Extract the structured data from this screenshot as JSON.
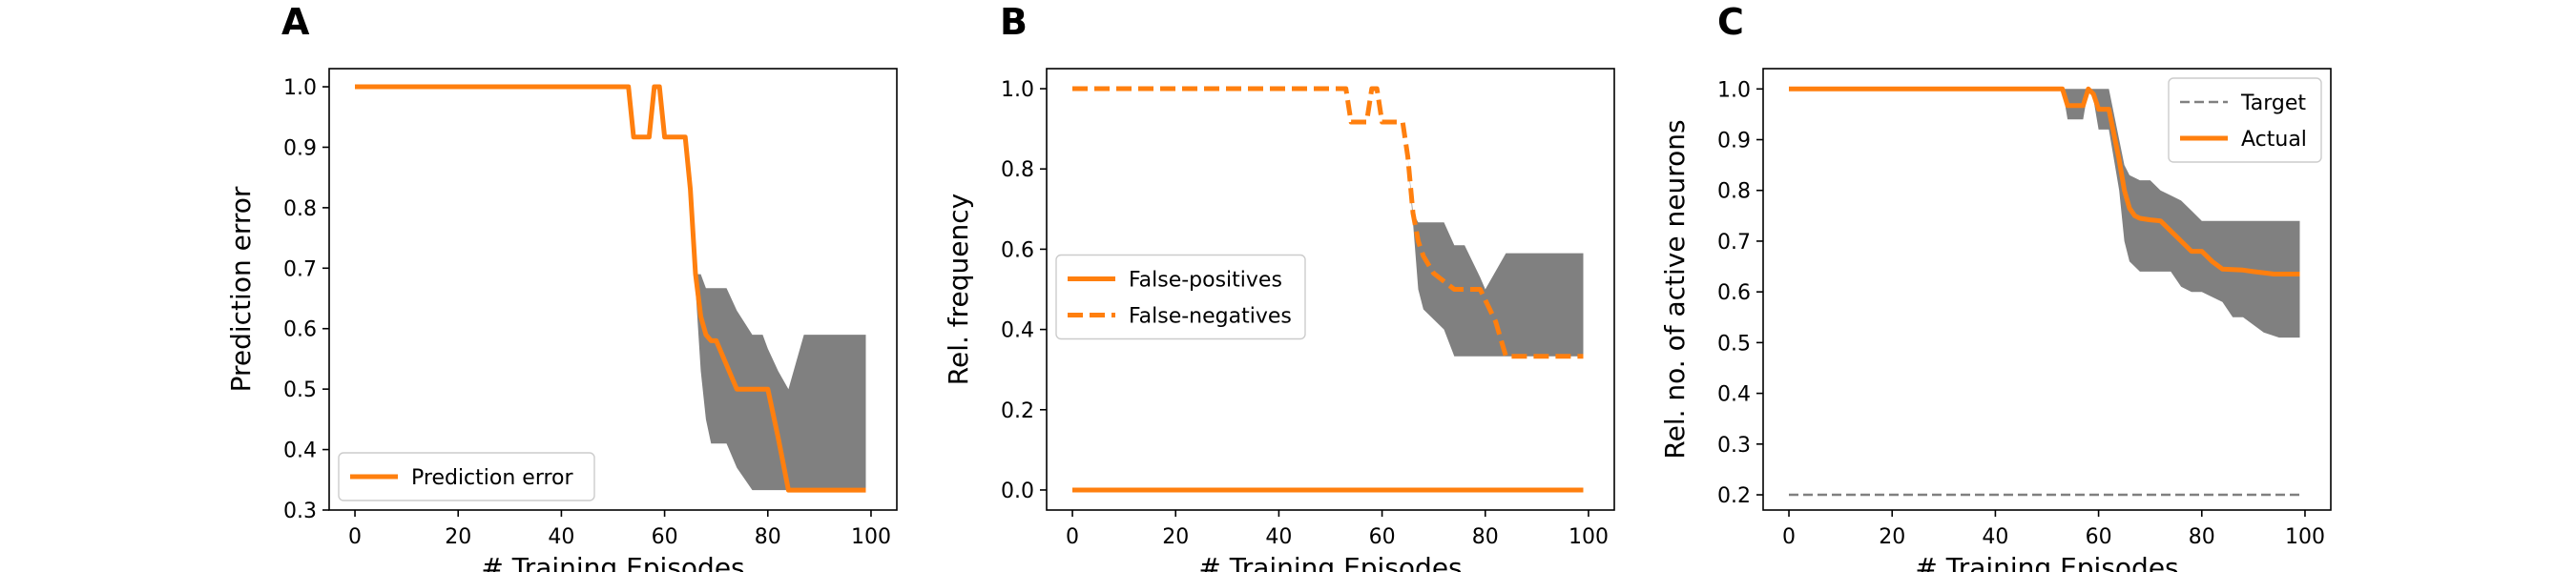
{
  "figure": {
    "panels": [
      {
        "letter": "A"
      },
      {
        "letter": "B"
      },
      {
        "letter": "C"
      }
    ]
  },
  "chart_data": [
    {
      "type": "line",
      "panel": "A",
      "xlabel": "# Training Episodes",
      "ylabel": "Prediction error",
      "xlim": [
        -5,
        105
      ],
      "ylim": [
        0.3,
        1.03
      ],
      "xticks": [
        0,
        20,
        40,
        60,
        80,
        100
      ],
      "yticks": [
        0.3,
        0.4,
        0.5,
        0.6,
        0.7,
        0.8,
        0.9,
        1.0
      ],
      "tick_format": 1,
      "legend": {
        "position": "lower left"
      },
      "series": [
        {
          "name": "Prediction error",
          "style": "solid",
          "color": "#ff7f0e",
          "x": [
            0,
            53,
            54,
            57,
            58,
            59,
            60,
            64,
            65,
            66,
            67,
            68,
            69,
            70,
            72,
            74,
            79,
            80,
            82,
            84,
            99
          ],
          "y": [
            1.0,
            1.0,
            0.917,
            0.917,
            1.0,
            1.0,
            0.917,
            0.917,
            0.83,
            0.69,
            0.62,
            0.59,
            0.58,
            0.58,
            0.54,
            0.5,
            0.5,
            0.5,
            0.42,
            0.333,
            0.333
          ]
        }
      ],
      "band": {
        "color": "#808080",
        "x": [
          0,
          53,
          54,
          57,
          58,
          59,
          60,
          64,
          65,
          66,
          67,
          68,
          69,
          70,
          72,
          74,
          77,
          79,
          80,
          82,
          84,
          87,
          88,
          89,
          99
        ],
        "upper": [
          1.0,
          1.0,
          0.917,
          0.917,
          1.0,
          1.0,
          0.917,
          0.917,
          0.83,
          0.69,
          0.69,
          0.667,
          0.667,
          0.667,
          0.667,
          0.63,
          0.59,
          0.59,
          0.567,
          0.53,
          0.5,
          0.59,
          0.59,
          0.59,
          0.59
        ],
        "lower": [
          1.0,
          1.0,
          0.917,
          0.917,
          1.0,
          1.0,
          0.917,
          0.917,
          0.83,
          0.667,
          0.53,
          0.45,
          0.41,
          0.41,
          0.41,
          0.37,
          0.333,
          0.333,
          0.333,
          0.333,
          0.333,
          0.333,
          0.333,
          0.333,
          0.333
        ]
      }
    },
    {
      "type": "line",
      "panel": "B",
      "xlabel": "# Training Episodes",
      "ylabel": "Rel. frequency",
      "xlim": [
        -5,
        105
      ],
      "ylim": [
        -0.05,
        1.05
      ],
      "xticks": [
        0,
        20,
        40,
        60,
        80,
        100
      ],
      "yticks": [
        0.0,
        0.2,
        0.4,
        0.6,
        0.8,
        1.0
      ],
      "tick_format": 1,
      "legend": {
        "position": "center left"
      },
      "series": [
        {
          "name": "False-positives",
          "style": "solid",
          "color": "#ff7f0e",
          "x": [
            0,
            99
          ],
          "y": [
            0.0,
            0.0
          ]
        },
        {
          "name": "False-negatives",
          "style": "dashed",
          "color": "#ff7f0e",
          "x": [
            0,
            53,
            54,
            57,
            58,
            59,
            60,
            64,
            65,
            66,
            67,
            68,
            70,
            74,
            79,
            82,
            84,
            99
          ],
          "y": [
            1.0,
            1.0,
            0.917,
            0.917,
            1.0,
            1.0,
            0.917,
            0.917,
            0.83,
            0.69,
            0.62,
            0.583,
            0.54,
            0.5,
            0.5,
            0.42,
            0.333,
            0.333
          ]
        }
      ],
      "band": {
        "color": "#808080",
        "x": [
          0,
          64,
          65,
          66,
          67,
          68,
          72,
          74,
          76,
          79,
          80,
          84,
          88,
          99
        ],
        "upper": [
          0,
          0,
          0.83,
          0.69,
          0.667,
          0.667,
          0.667,
          0.61,
          0.61,
          0.53,
          0.5,
          0.59,
          0.59,
          0.59
        ],
        "lower": [
          0,
          0,
          0.83,
          0.667,
          0.5,
          0.45,
          0.4,
          0.333,
          0.333,
          0.333,
          0.333,
          0.333,
          0.333,
          0.333
        ]
      }
    },
    {
      "type": "line",
      "panel": "C",
      "xlabel": "# Training Episodes",
      "ylabel": "Rel. no. of active neurons",
      "xlim": [
        -5,
        105
      ],
      "ylim": [
        0.17,
        1.04
      ],
      "xticks": [
        0,
        20,
        40,
        60,
        80,
        100
      ],
      "yticks": [
        0.2,
        0.3,
        0.4,
        0.5,
        0.6,
        0.7,
        0.8,
        0.9,
        1.0
      ],
      "tick_format": 1,
      "legend": {
        "position": "upper right"
      },
      "series": [
        {
          "name": "Target",
          "style": "dashed-thin",
          "color": "#808080",
          "x": [
            0,
            99
          ],
          "y": [
            0.2,
            0.2
          ]
        },
        {
          "name": "Actual",
          "style": "solid",
          "color": "#ff7f0e",
          "x": [
            0,
            53,
            54,
            56,
            57,
            58,
            59,
            60,
            62,
            64,
            65,
            66,
            67,
            68,
            70,
            72,
            74,
            76,
            78,
            80,
            82,
            84,
            88,
            90,
            94,
            99
          ],
          "y": [
            1.0,
            1.0,
            0.967,
            0.967,
            0.967,
            1.0,
            0.99,
            0.96,
            0.96,
            0.86,
            0.8,
            0.765,
            0.75,
            0.745,
            0.742,
            0.74,
            0.72,
            0.7,
            0.68,
            0.68,
            0.66,
            0.645,
            0.643,
            0.64,
            0.635,
            0.635
          ]
        }
      ],
      "band": {
        "color": "#808080",
        "x": [
          0,
          53,
          54,
          56,
          57,
          58,
          59,
          60,
          62,
          64,
          65,
          66,
          68,
          70,
          72,
          74,
          76,
          78,
          80,
          84,
          86,
          88,
          92,
          95,
          99
        ],
        "upper": [
          1.0,
          1.0,
          1.0,
          1.0,
          1.0,
          1.0,
          1.0,
          1.0,
          1.0,
          0.9,
          0.85,
          0.83,
          0.82,
          0.82,
          0.8,
          0.79,
          0.78,
          0.76,
          0.74,
          0.74,
          0.74,
          0.74,
          0.74,
          0.74,
          0.74
        ],
        "lower": [
          1.0,
          1.0,
          0.94,
          0.94,
          0.94,
          1.0,
          0.98,
          0.92,
          0.92,
          0.8,
          0.7,
          0.66,
          0.64,
          0.64,
          0.64,
          0.64,
          0.61,
          0.6,
          0.6,
          0.58,
          0.55,
          0.55,
          0.52,
          0.51,
          0.51
        ]
      }
    }
  ]
}
